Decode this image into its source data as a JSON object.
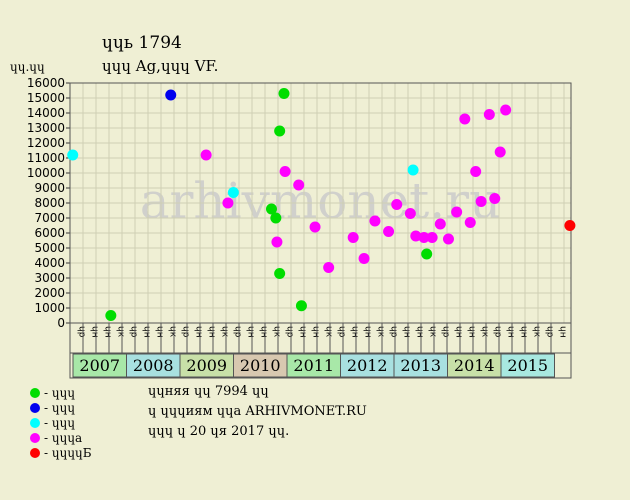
{
  "header": {
    "title": "ɥɥь 1794",
    "subtitle": "ɥɥɥ Ag,ɥɥɥ VF.",
    "y_unit": "ɥɥ.ɥɥ"
  },
  "watermark": "arhivmonet.ru",
  "legend": [
    {
      "label": "- ɥɥɥ",
      "color": "#00dd00"
    },
    {
      "label": "- ɥɥɥ",
      "color": "#0000ee"
    },
    {
      "label": "- ɥɥɥ",
      "color": "#00ffff"
    },
    {
      "label": "- ɥɥɥа",
      "color": "#ff00ff"
    },
    {
      "label": "- ɥɥɥɥБ",
      "color": "#ff0000"
    }
  ],
  "notes": [
    "ɥɥняя ɥɥ 7994 ɥɥ",
    "ɥ ɥɥɥиям ɥɥа ARHIVMONET.RU",
    "ɥɥɥ ɥ 20 ɥя 2017 ɥɥ."
  ],
  "chart_data": {
    "type": "scatter",
    "ylim": [
      0,
      16000
    ],
    "y_ticks": [
      0,
      1000,
      2000,
      3000,
      4000,
      5000,
      6000,
      7000,
      8000,
      9000,
      10000,
      11000,
      12000,
      13000,
      14000,
      15000,
      16000
    ],
    "grid": true,
    "month_labels": [
      "ɥр",
      "ɥн",
      "ɥн",
      "ɥк"
    ],
    "years": [
      {
        "label": "2007",
        "color": "#a8e8a8"
      },
      {
        "label": "2008",
        "color": "#a8e0e0"
      },
      {
        "label": "2009",
        "color": "#c8e0a8"
      },
      {
        "label": "2010",
        "color": "#d8c8b0"
      },
      {
        "label": "2011",
        "color": "#a8e8a8"
      },
      {
        "label": "2012",
        "color": "#a8e0e0"
      },
      {
        "label": "2013",
        "color": "#a8e0e0"
      },
      {
        "label": "2014",
        "color": "#c8e0a8"
      },
      {
        "label": "2015",
        "color": "#a8e8e0"
      }
    ],
    "x_range": [
      0,
      9.2
    ],
    "series": [
      {
        "color": "#00ffff",
        "points": [
          [
            0.05,
            11200
          ],
          [
            3.0,
            8700
          ],
          [
            6.3,
            10200
          ]
        ]
      },
      {
        "color": "#00dd00",
        "points": [
          [
            0.75,
            500
          ],
          [
            3.7,
            7600
          ],
          [
            3.78,
            7000
          ],
          [
            3.85,
            12800
          ],
          [
            3.93,
            15300
          ],
          [
            3.85,
            3300
          ],
          [
            4.25,
            1150
          ],
          [
            6.55,
            4600
          ]
        ]
      },
      {
        "color": "#0000ee",
        "points": [
          [
            1.85,
            15200
          ]
        ]
      },
      {
        "color": "#ff00ff",
        "points": [
          [
            2.5,
            11200
          ],
          [
            2.9,
            8000
          ],
          [
            3.8,
            5400
          ],
          [
            3.95,
            10100
          ],
          [
            4.2,
            9200
          ],
          [
            4.5,
            6400
          ],
          [
            4.75,
            3700
          ],
          [
            5.2,
            5700
          ],
          [
            5.4,
            4300
          ],
          [
            5.6,
            6800
          ],
          [
            5.85,
            6100
          ],
          [
            6.0,
            7900
          ],
          [
            6.25,
            7300
          ],
          [
            6.35,
            5800
          ],
          [
            6.5,
            5700
          ],
          [
            6.65,
            5700
          ],
          [
            6.8,
            6600
          ],
          [
            6.95,
            5600
          ],
          [
            7.1,
            7400
          ],
          [
            7.25,
            13600
          ],
          [
            7.35,
            6700
          ],
          [
            7.45,
            10100
          ],
          [
            7.55,
            8100
          ],
          [
            7.7,
            13900
          ],
          [
            7.8,
            8300
          ],
          [
            7.9,
            11400
          ],
          [
            8.0,
            14200
          ]
        ]
      },
      {
        "color": "#ff0000",
        "points": [
          [
            9.18,
            6500
          ]
        ]
      }
    ]
  }
}
